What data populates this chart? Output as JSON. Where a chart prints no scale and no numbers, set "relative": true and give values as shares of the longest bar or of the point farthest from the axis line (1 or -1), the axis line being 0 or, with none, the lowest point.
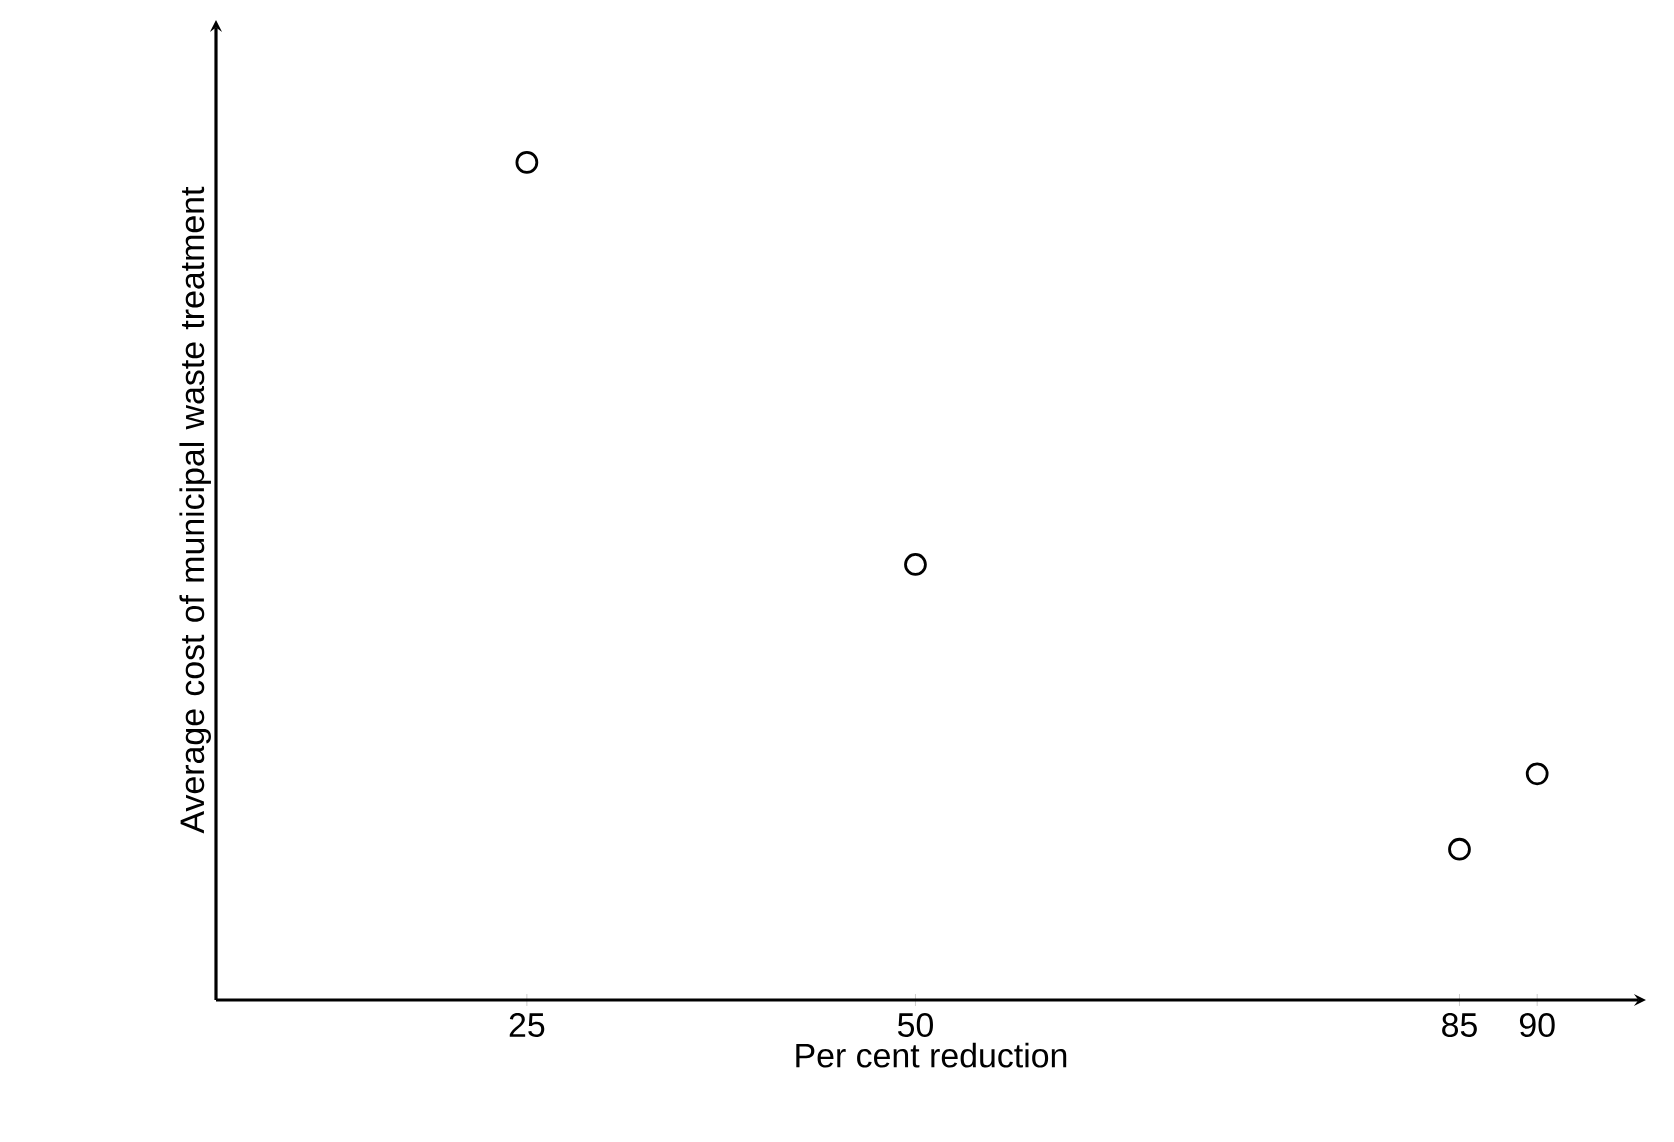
{
  "chart_data": {
    "type": "scatter",
    "xlabel": "Per cent reduction",
    "ylabel": "Average cost of municipal waste treatment",
    "x": [
      25,
      50,
      85,
      90
    ],
    "values": [
      1,
      0.52,
      0.18,
      0.27
    ],
    "relative": true,
    "color": "#000000",
    "marker": "circle",
    "xlim": [
      5,
      97
    ],
    "xticks": [
      25,
      50,
      85,
      90
    ]
  }
}
